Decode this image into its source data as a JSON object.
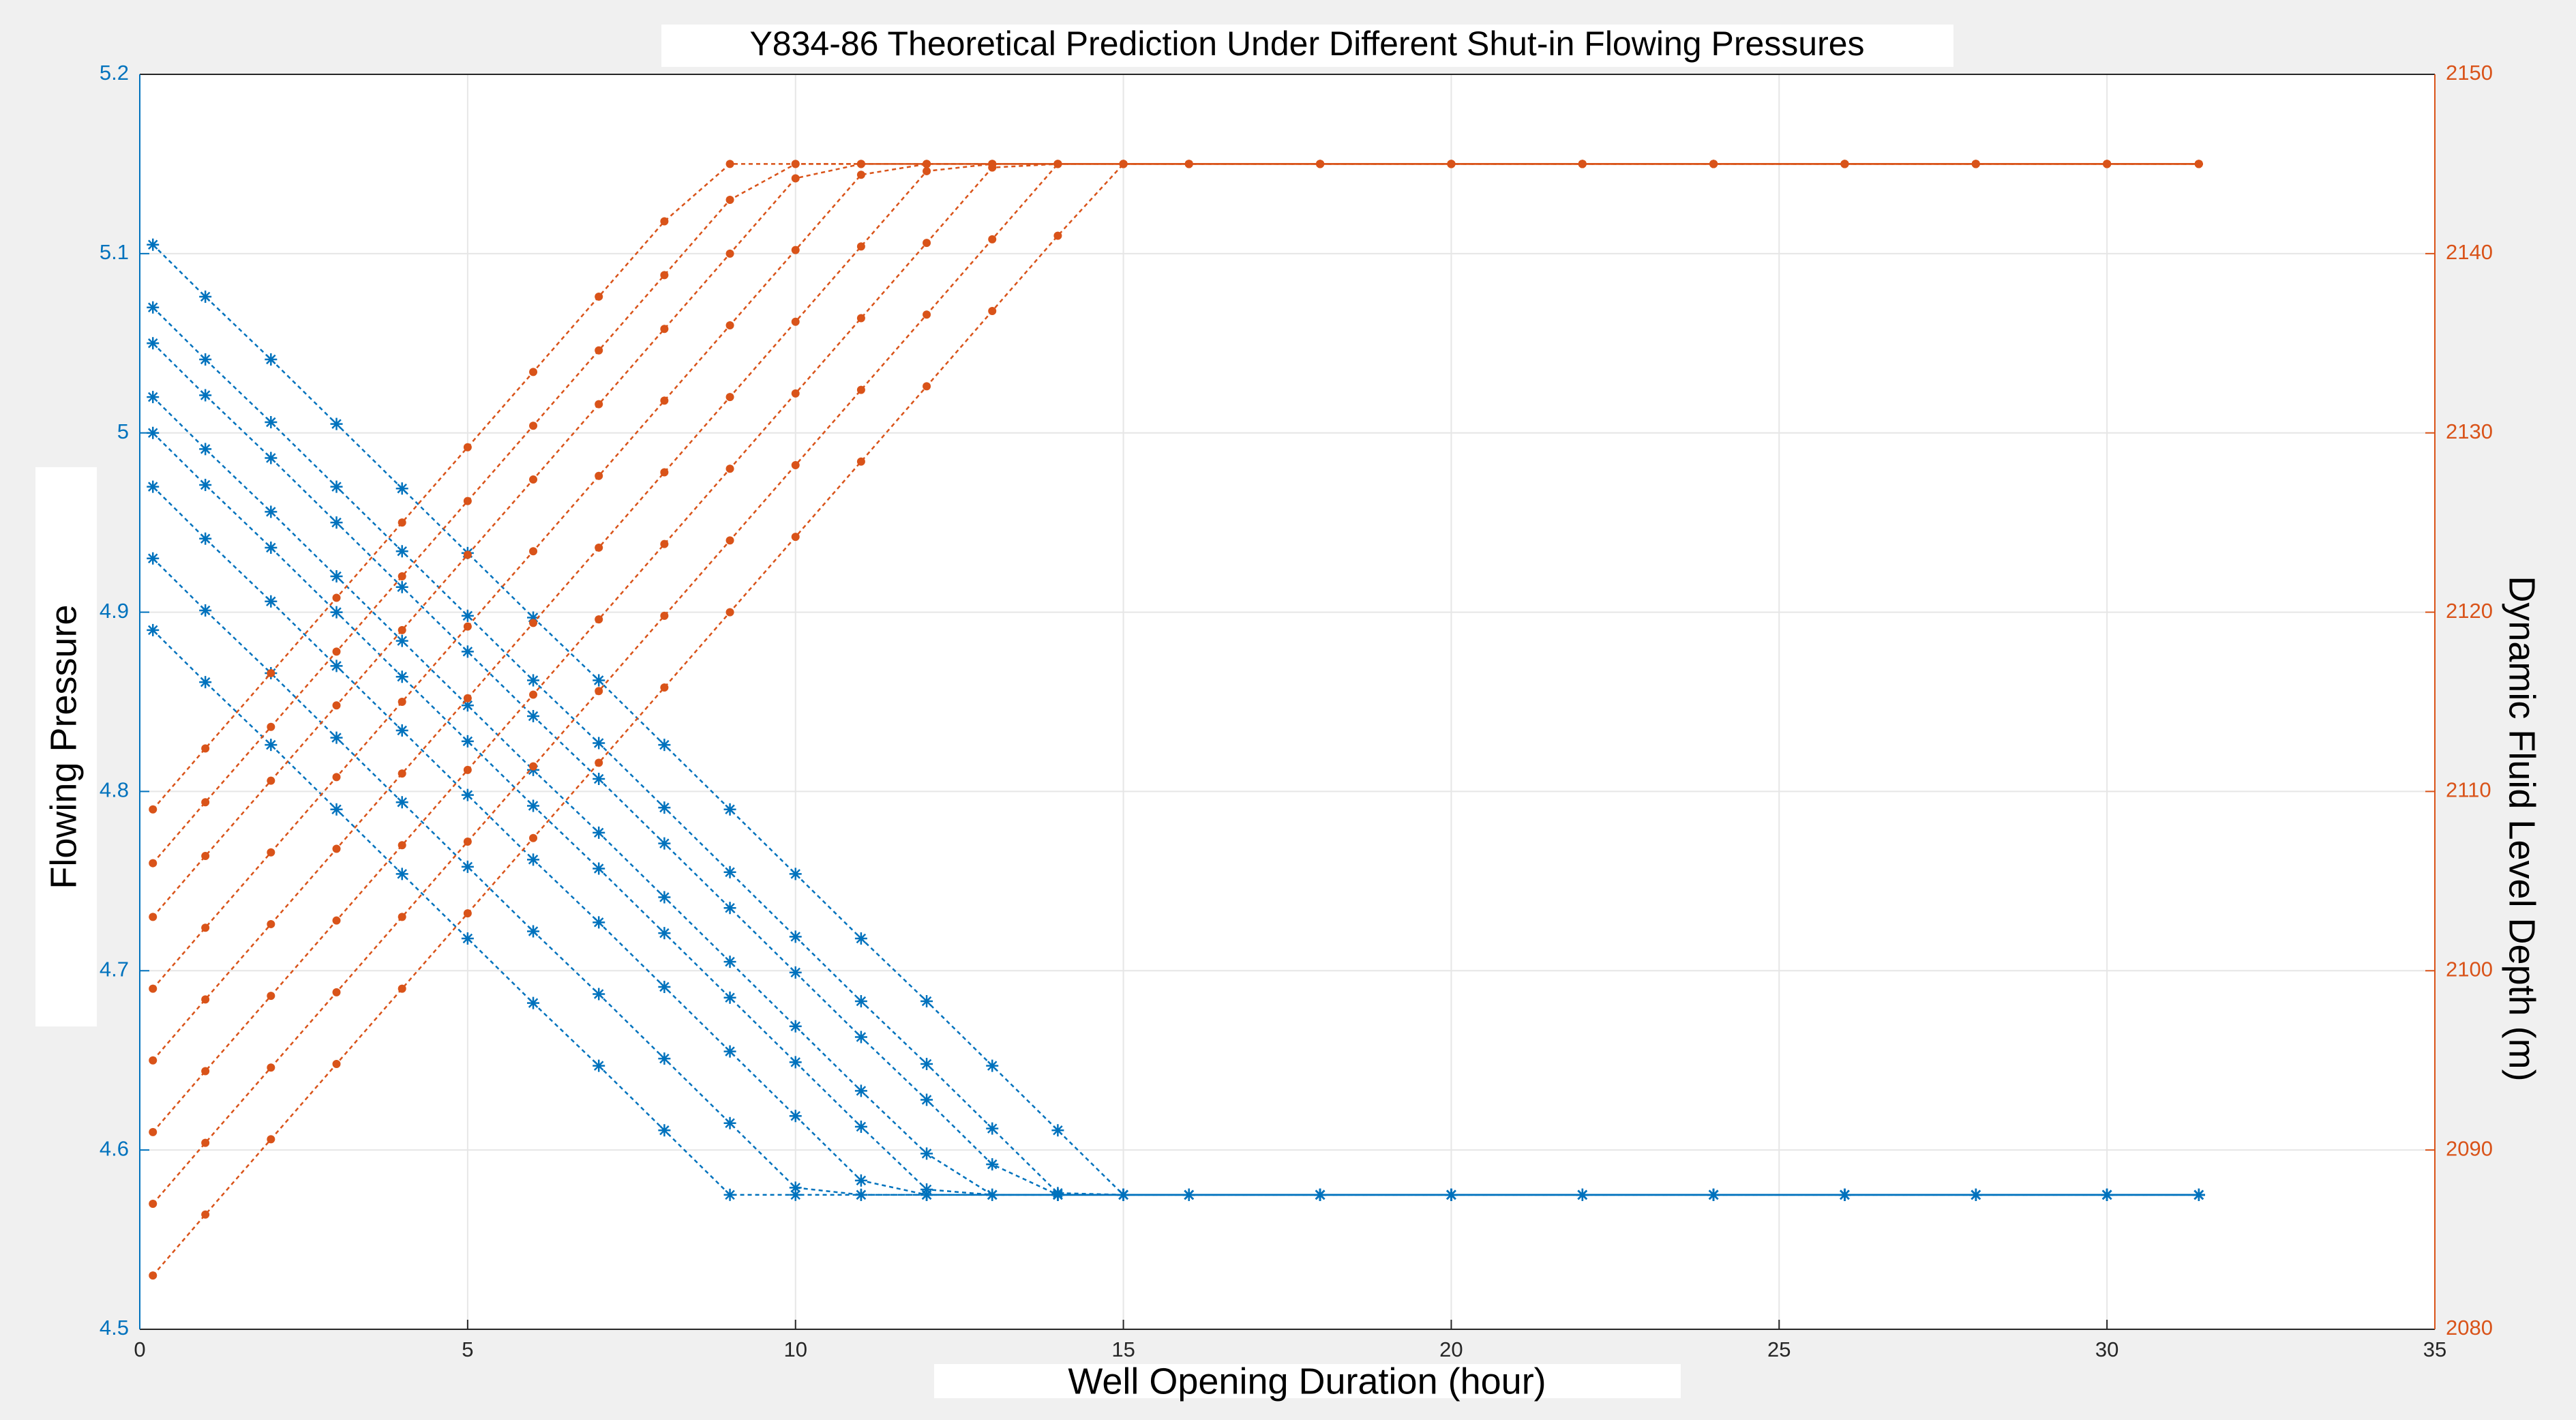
{
  "chart_data": {
    "type": "line",
    "title": "Y834-86 Theoretical Prediction Under Different Shut-in Flowing Pressures",
    "xlabel": "Well Opening Duration (hour)",
    "ylabel": "Flowing Pressure",
    "y2label": "Dynamic Fluid Level Depth (m)",
    "x": [
      0.2,
      1,
      2,
      3,
      4,
      5,
      6,
      7,
      8,
      9,
      10,
      11,
      12,
      13,
      14,
      15,
      16,
      18,
      20,
      22,
      24,
      26,
      28,
      30,
      31.4
    ],
    "xlim": [
      0,
      35
    ],
    "xticks": [
      0,
      5,
      10,
      15,
      20,
      25,
      30,
      35
    ],
    "ylim": [
      4.5,
      5.2
    ],
    "yticks": [
      4.5,
      4.6,
      4.7,
      4.8,
      4.9,
      5,
      5.1,
      5.2
    ],
    "y2lim": [
      2080,
      2150
    ],
    "y2ticks": [
      2080,
      2090,
      2100,
      2110,
      2120,
      2130,
      2140,
      2150
    ],
    "grid": true,
    "ycolor": "#0072bd",
    "y2color": "#d95319",
    "series": [
      {
        "color": "#0072bd",
        "marker": "star",
        "values": [
          5.105,
          5.076,
          5.041,
          5.005,
          4.969,
          4.933,
          4.897,
          4.862,
          4.826,
          4.79,
          4.754,
          4.718,
          4.683,
          4.647,
          4.611,
          4.575,
          4.575,
          4.575,
          4.575,
          4.575,
          4.575,
          4.575,
          4.575,
          4.575,
          4.575
        ]
      },
      {
        "color": "#0072bd",
        "marker": "star",
        "values": [
          5.07,
          5.041,
          5.006,
          4.97,
          4.934,
          4.898,
          4.862,
          4.827,
          4.791,
          4.755,
          4.719,
          4.683,
          4.648,
          4.612,
          4.576,
          4.575,
          4.575,
          4.575,
          4.575,
          4.575,
          4.575,
          4.575,
          4.575,
          4.575,
          4.575
        ]
      },
      {
        "color": "#0072bd",
        "marker": "star",
        "values": [
          5.05,
          5.021,
          4.986,
          4.95,
          4.914,
          4.878,
          4.842,
          4.807,
          4.771,
          4.735,
          4.699,
          4.663,
          4.628,
          4.592,
          4.575,
          4.575,
          4.575,
          4.575,
          4.575,
          4.575,
          4.575,
          4.575,
          4.575,
          4.575,
          4.575
        ]
      },
      {
        "color": "#0072bd",
        "marker": "star",
        "values": [
          5.02,
          4.991,
          4.956,
          4.92,
          4.884,
          4.848,
          4.812,
          4.777,
          4.741,
          4.705,
          4.669,
          4.633,
          4.598,
          4.575,
          4.575,
          4.575,
          4.575,
          4.575,
          4.575,
          4.575,
          4.575,
          4.575,
          4.575,
          4.575,
          4.575
        ]
      },
      {
        "color": "#0072bd",
        "marker": "star",
        "values": [
          5.0,
          4.971,
          4.936,
          4.9,
          4.864,
          4.828,
          4.792,
          4.757,
          4.721,
          4.685,
          4.649,
          4.613,
          4.578,
          4.575,
          4.575,
          4.575,
          4.575,
          4.575,
          4.575,
          4.575,
          4.575,
          4.575,
          4.575,
          4.575,
          4.575
        ]
      },
      {
        "color": "#0072bd",
        "marker": "star",
        "values": [
          4.97,
          4.941,
          4.906,
          4.87,
          4.834,
          4.798,
          4.762,
          4.727,
          4.691,
          4.655,
          4.619,
          4.583,
          4.575,
          4.575,
          4.575,
          4.575,
          4.575,
          4.575,
          4.575,
          4.575,
          4.575,
          4.575,
          4.575,
          4.575,
          4.575
        ]
      },
      {
        "color": "#0072bd",
        "marker": "star",
        "values": [
          4.93,
          4.901,
          4.866,
          4.83,
          4.794,
          4.758,
          4.722,
          4.687,
          4.651,
          4.615,
          4.579,
          4.575,
          4.575,
          4.575,
          4.575,
          4.575,
          4.575,
          4.575,
          4.575,
          4.575,
          4.575,
          4.575,
          4.575,
          4.575,
          4.575
        ]
      },
      {
        "color": "#0072bd",
        "marker": "star",
        "values": [
          4.89,
          4.861,
          4.826,
          4.79,
          4.754,
          4.718,
          4.682,
          4.647,
          4.611,
          4.575,
          4.575,
          4.575,
          4.575,
          4.575,
          4.575,
          4.575,
          4.575,
          4.575,
          4.575,
          4.575,
          4.575,
          4.575,
          4.575,
          4.575,
          4.575
        ]
      },
      {
        "color": "#d95319",
        "marker": "dot",
        "axis": "y2",
        "values": [
          2083,
          2086.4,
          2090.6,
          2094.8,
          2099.0,
          2103.2,
          2107.4,
          2111.6,
          2115.8,
          2120.0,
          2124.2,
          2128.4,
          2132.6,
          2136.8,
          2141.0,
          2145,
          2145,
          2145,
          2145,
          2145,
          2145,
          2145,
          2145,
          2145,
          2145
        ]
      },
      {
        "color": "#d95319",
        "marker": "dot",
        "axis": "y2",
        "values": [
          2087,
          2090.4,
          2094.6,
          2098.8,
          2103.0,
          2107.2,
          2111.4,
          2115.6,
          2119.8,
          2124.0,
          2128.2,
          2132.4,
          2136.6,
          2140.8,
          2145,
          2145,
          2145,
          2145,
          2145,
          2145,
          2145,
          2145,
          2145,
          2145,
          2145
        ]
      },
      {
        "color": "#d95319",
        "marker": "dot",
        "axis": "y2",
        "values": [
          2091,
          2094.4,
          2098.6,
          2102.8,
          2107.0,
          2111.2,
          2115.4,
          2119.6,
          2123.8,
          2128.0,
          2132.2,
          2136.4,
          2140.6,
          2144.8,
          2145,
          2145,
          2145,
          2145,
          2145,
          2145,
          2145,
          2145,
          2145,
          2145,
          2145
        ]
      },
      {
        "color": "#d95319",
        "marker": "dot",
        "axis": "y2",
        "values": [
          2095,
          2098.4,
          2102.6,
          2106.8,
          2111.0,
          2115.2,
          2119.4,
          2123.6,
          2127.8,
          2132.0,
          2136.2,
          2140.4,
          2144.6,
          2145,
          2145,
          2145,
          2145,
          2145,
          2145,
          2145,
          2145,
          2145,
          2145,
          2145,
          2145
        ]
      },
      {
        "color": "#d95319",
        "marker": "dot",
        "axis": "y2",
        "values": [
          2099,
          2102.4,
          2106.6,
          2110.8,
          2115.0,
          2119.2,
          2123.4,
          2127.6,
          2131.8,
          2136.0,
          2140.2,
          2144.4,
          2145,
          2145,
          2145,
          2145,
          2145,
          2145,
          2145,
          2145,
          2145,
          2145,
          2145,
          2145,
          2145
        ]
      },
      {
        "color": "#d95319",
        "marker": "dot",
        "axis": "y2",
        "values": [
          2103,
          2106.4,
          2110.6,
          2114.8,
          2119.0,
          2123.2,
          2127.4,
          2131.6,
          2135.8,
          2140.0,
          2144.2,
          2145,
          2145,
          2145,
          2145,
          2145,
          2145,
          2145,
          2145,
          2145,
          2145,
          2145,
          2145,
          2145,
          2145
        ]
      },
      {
        "color": "#d95319",
        "marker": "dot",
        "axis": "y2",
        "values": [
          2106,
          2109.4,
          2113.6,
          2117.8,
          2122.0,
          2126.2,
          2130.4,
          2134.6,
          2138.8,
          2143.0,
          2145,
          2145,
          2145,
          2145,
          2145,
          2145,
          2145,
          2145,
          2145,
          2145,
          2145,
          2145,
          2145,
          2145,
          2145
        ]
      },
      {
        "color": "#d95319",
        "marker": "dot",
        "axis": "y2",
        "values": [
          2109,
          2112.4,
          2116.6,
          2120.8,
          2125.0,
          2129.2,
          2133.4,
          2137.6,
          2141.8,
          2145,
          2145,
          2145,
          2145,
          2145,
          2145,
          2145,
          2145,
          2145,
          2145,
          2145,
          2145,
          2145,
          2145,
          2145,
          2145
        ]
      }
    ]
  }
}
